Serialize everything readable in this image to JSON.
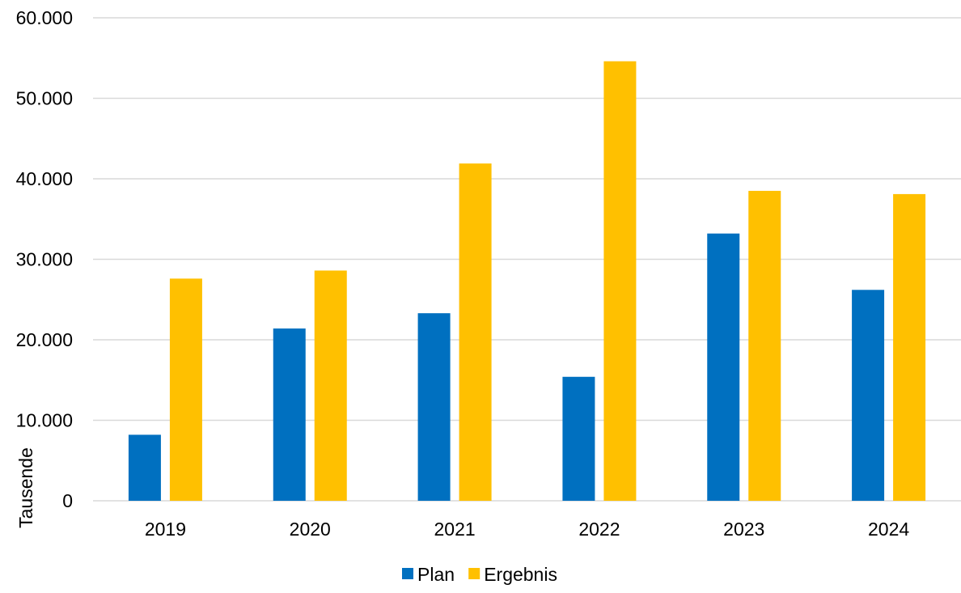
{
  "chart_data": {
    "type": "bar",
    "title": "",
    "xlabel": "",
    "ylabel": "Tausende",
    "categories": [
      "2019",
      "2020",
      "2021",
      "2022",
      "2023",
      "2024"
    ],
    "series": [
      {
        "name": "Plan",
        "color": "#0070c0",
        "values": [
          8200,
          21400,
          23300,
          15400,
          33200,
          26200
        ]
      },
      {
        "name": "Ergebnis",
        "color": "#ffc000",
        "values": [
          27600,
          28600,
          41900,
          54600,
          38500,
          38100
        ]
      }
    ],
    "ylim": [
      0,
      60000
    ],
    "yticks": [
      0,
      10000,
      20000,
      30000,
      40000,
      50000,
      60000
    ],
    "ytick_labels": [
      "0",
      "10.000",
      "20.000",
      "30.000",
      "40.000",
      "50.000",
      "60.000"
    ],
    "grid": true,
    "grid_color": "#d9d9d9",
    "legend_position": "bottom"
  }
}
